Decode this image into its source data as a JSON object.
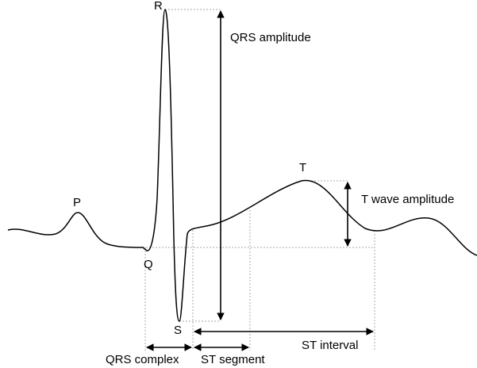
{
  "labels": {
    "r": "R",
    "qrs_amplitude": "QRS amplitude",
    "t": "T",
    "t_wave_amplitude": "T wave amplitude",
    "p": "P",
    "q": "Q",
    "s": "S",
    "qrs_complex": "QRS complex",
    "st_segment": "ST segment",
    "st_interval": "ST interval"
  }
}
